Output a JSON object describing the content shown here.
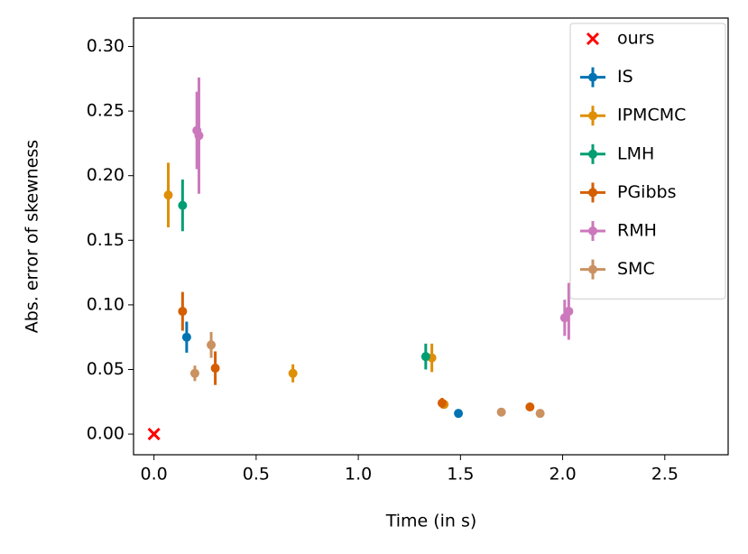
{
  "chart_data": {
    "type": "errorbar-scatter",
    "xlabel": "Time (in s)",
    "ylabel": "Abs. error of skewness",
    "xlim": [
      -0.1,
      2.81
    ],
    "ylim": [
      -0.016,
      0.322
    ],
    "xticks": [
      {
        "value": 0,
        "label": "0.0"
      },
      0.5,
      {
        "value": 1,
        "label": "1.0"
      },
      1.5,
      {
        "value": 2,
        "label": "2.0"
      },
      2.5
    ],
    "yticks": [
      {
        "value": 0,
        "label": "0.00"
      },
      {
        "value": 0.05,
        "label": "0.05"
      },
      {
        "value": 0.1,
        "label": "0.10"
      },
      {
        "value": 0.15,
        "label": "0.15"
      },
      {
        "value": 0.2,
        "label": "0.20"
      },
      {
        "value": 0.25,
        "label": "0.25"
      },
      {
        "value": 0.3,
        "label": "0.30"
      }
    ],
    "legend": "upper right",
    "series": [
      {
        "name": "ours",
        "color": "#ff0000",
        "marker": "x",
        "x": [
          0
        ],
        "values": [
          0
        ]
      },
      {
        "name": "IS",
        "color": "#0173b2",
        "marker": "o",
        "x": [
          0.16,
          1.49
        ],
        "values": [
          0.075,
          0.016
        ],
        "errors": [
          0.012,
          0.001
        ]
      },
      {
        "name": "IPMCMC",
        "color": "#de8f05",
        "marker": "o",
        "x": [
          0.07,
          0.68,
          1.36,
          1.42
        ],
        "values": [
          0.185,
          0.047,
          0.059,
          0.023
        ],
        "errors": [
          0.025,
          0.007,
          0.011,
          0.003
        ]
      },
      {
        "name": "LMH",
        "color": "#029e73",
        "marker": "o",
        "x": [
          0.14,
          1.33
        ],
        "values": [
          0.177,
          0.06
        ],
        "errors": [
          0.02,
          0.01
        ]
      },
      {
        "name": "PGibbs",
        "color": "#d55e00",
        "marker": "o",
        "x": [
          0.14,
          0.3,
          1.41,
          1.84
        ],
        "values": [
          0.095,
          0.051,
          0.024,
          0.021
        ],
        "errors": [
          0.015,
          0.013,
          0.004,
          0.002
        ]
      },
      {
        "name": "RMH",
        "color": "#cc78bc",
        "marker": "o",
        "x": [
          0.21,
          0.22,
          2.01,
          2.03
        ],
        "values": [
          0.235,
          0.231,
          0.09,
          0.095
        ],
        "errors": [
          0.03,
          0.045,
          0.014,
          0.022
        ]
      },
      {
        "name": "SMC",
        "color": "#ca9161",
        "marker": "o",
        "x": [
          0.2,
          0.28,
          1.7,
          1.89
        ],
        "values": [
          0.047,
          0.069,
          0.017,
          0.016
        ],
        "errors": [
          0.006,
          0.01,
          0.002,
          0.002
        ]
      }
    ]
  }
}
